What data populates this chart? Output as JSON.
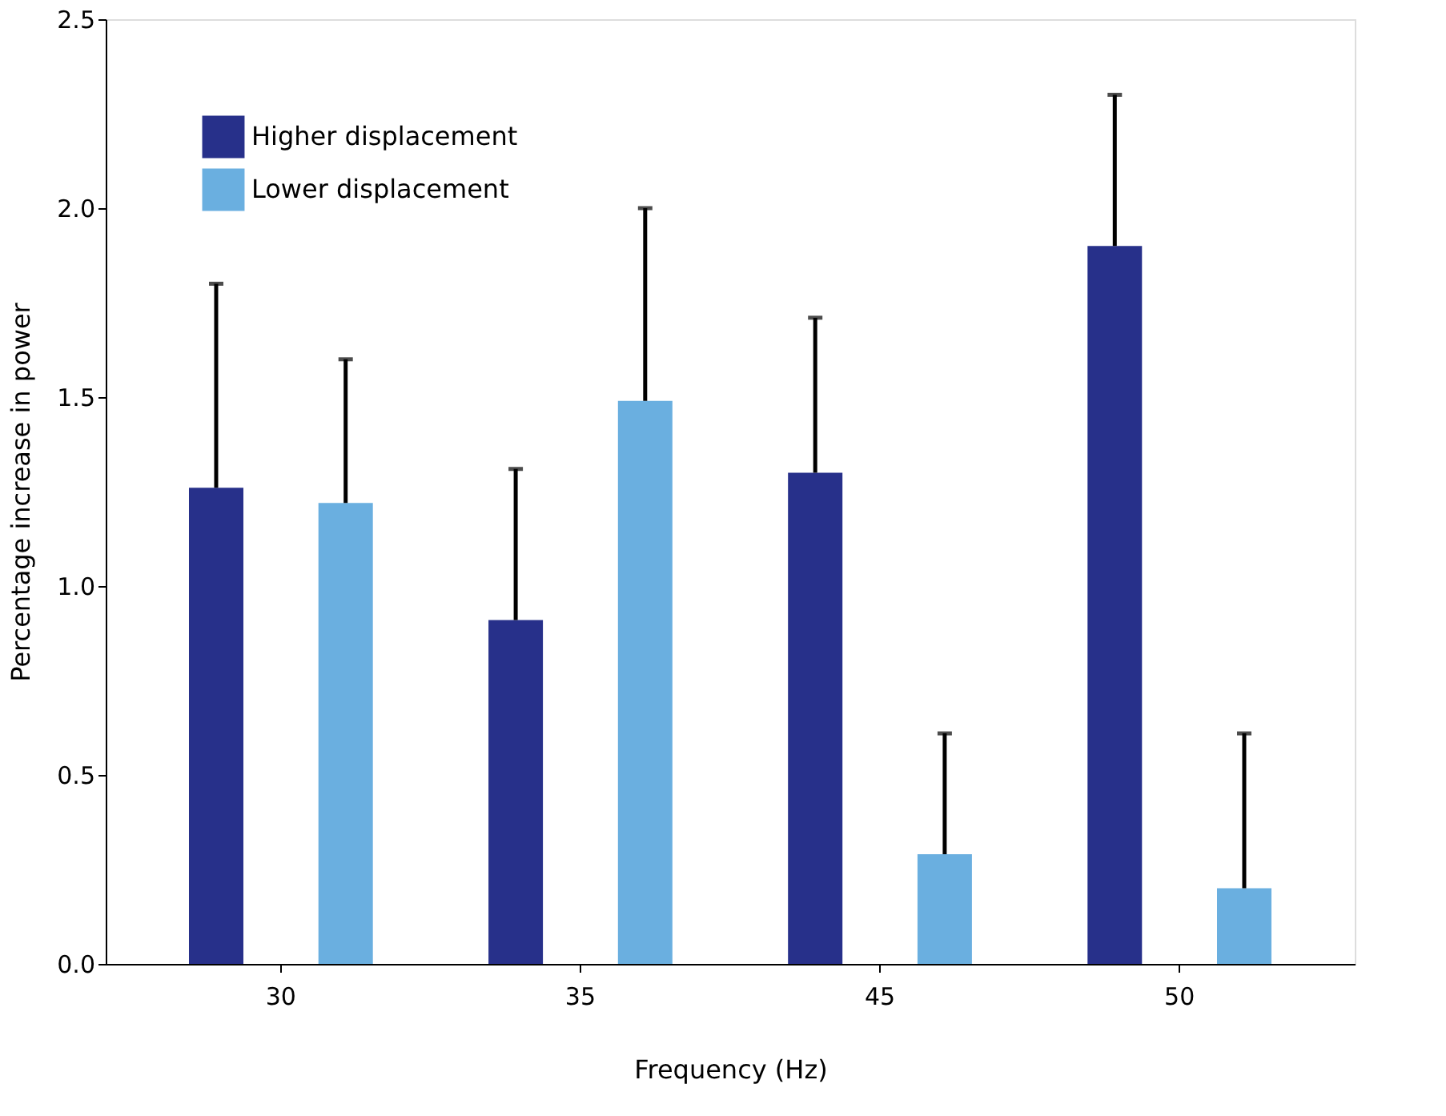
{
  "chart_data": {
    "type": "bar",
    "xlabel": "Frequency (Hz)",
    "ylabel": "Percentage increase in power",
    "categories": [
      "30",
      "35",
      "45",
      "50"
    ],
    "series": [
      {
        "name": "Higher displacement",
        "color": "#27308a",
        "values": [
          1.26,
          0.91,
          1.3,
          1.9
        ],
        "errors": [
          [
            1.26,
            1.8
          ],
          [
            0.91,
            1.31
          ],
          [
            1.3,
            1.71
          ],
          [
            1.9,
            2.3
          ]
        ]
      },
      {
        "name": "Lower displacement",
        "color": "#6aafe0",
        "values": [
          1.22,
          1.49,
          0.29,
          0.2
        ],
        "errors": [
          [
            1.22,
            1.6
          ],
          [
            1.49,
            2.0
          ],
          [
            0.29,
            0.61
          ],
          [
            0.2,
            0.61
          ]
        ]
      }
    ],
    "ylim": [
      0,
      2.5
    ],
    "yticks": [
      {
        "value": 0,
        "label": "0.0"
      },
      {
        "value": 0.5,
        "label": "0.5"
      },
      {
        "value": 1,
        "label": "1.0"
      },
      {
        "value": 1.5,
        "label": "1.5"
      },
      {
        "value": 2,
        "label": "2.0"
      },
      {
        "value": 2.5,
        "label": "2.5"
      }
    ],
    "grid": false,
    "legend": "top left"
  }
}
